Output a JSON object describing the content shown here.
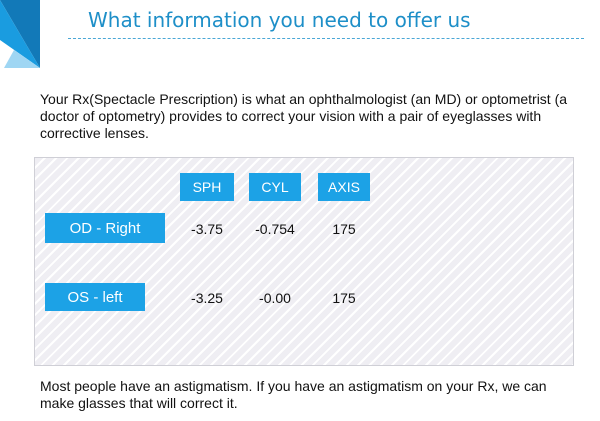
{
  "header": {
    "title": "What information you need to offer us",
    "accent_color": "#1e8fc8",
    "logo_icon": "blue-corner-triangle-icon"
  },
  "intro_text": "Your Rx(Spectacle Prescription) is what an ophthalmologist (an MD) or optometrist (a doctor of optometry) provides to correct your vision with a pair of eyeglasses with corrective lenses.",
  "prescription": {
    "tag_color": "#1ca2e6",
    "columns": [
      "SPH",
      "CYL",
      "AXIS"
    ],
    "rows": [
      {
        "label": "OD - Right",
        "sph": "-3.75",
        "cyl": "-0.754",
        "axis": "175"
      },
      {
        "label": "OS - left",
        "sph": "-3.25",
        "cyl": "-0.00",
        "axis": "175"
      }
    ]
  },
  "footer_text": "Most people have an astigmatism. If you have an astigmatism on your Rx, we can make glasses that will correct it."
}
